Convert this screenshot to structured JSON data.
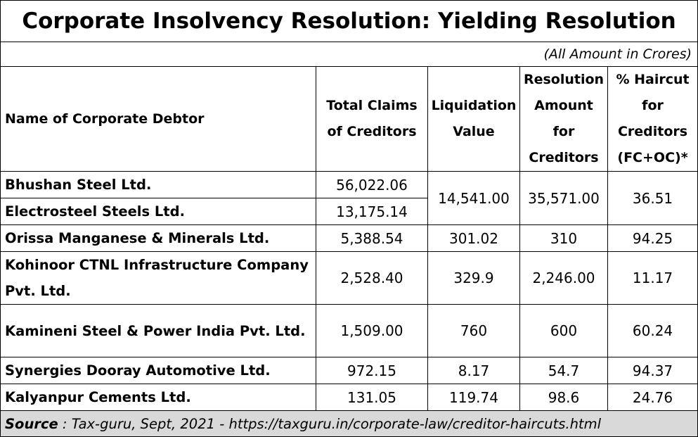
{
  "title": "Corporate Insolvency Resolution: Yielding Resolution",
  "units_note": "(All Amount in Crores)",
  "headers": {
    "name": "Name of Corporate Debtor",
    "total_claims": "Total Claims of Creditors",
    "liquidation": "Liquidation Value",
    "resolution": "Resolution Amount for Creditors",
    "haircut": "% Haircut for Creditors (FC+OC)*"
  },
  "rows": [
    {
      "name": "Bhushan Steel Ltd.",
      "total_claims": "56,022.06"
    },
    {
      "name": "Electrosteel Steels Ltd.",
      "total_claims": "13,175.14"
    },
    {
      "name": "Orissa Manganese & Minerals Ltd.",
      "total_claims": "5,388.54",
      "liquidation": "301.02",
      "resolution": "310",
      "haircut": "94.25"
    },
    {
      "name": "Kohinoor CTNL Infrastructure Company Pvt. Ltd.",
      "total_claims": "2,528.40",
      "liquidation": "329.9",
      "resolution": "2,246.00",
      "haircut": "11.17"
    },
    {
      "name": "Kamineni Steel & Power India Pvt. Ltd.",
      "total_claims": "1,509.00",
      "liquidation": "760",
      "resolution": "600",
      "haircut": "60.24"
    },
    {
      "name": "Synergies Dooray Automotive Ltd.",
      "total_claims": "972.15",
      "liquidation": "8.17",
      "resolution": "54.7",
      "haircut": "94.37"
    },
    {
      "name": "Kalyanpur Cements Ltd.",
      "total_claims": "131.05",
      "liquidation": "119.74",
      "resolution": "98.6",
      "haircut": "24.76"
    }
  ],
  "merged_first_two": {
    "liquidation": "14,541.00",
    "resolution": "35,571.00",
    "haircut": "36.51"
  },
  "source": {
    "label": "Source",
    "text": " : Tax-guru, Sept, 2021 - https://taxguru.in/corporate-law/creditor-haircuts.html"
  }
}
